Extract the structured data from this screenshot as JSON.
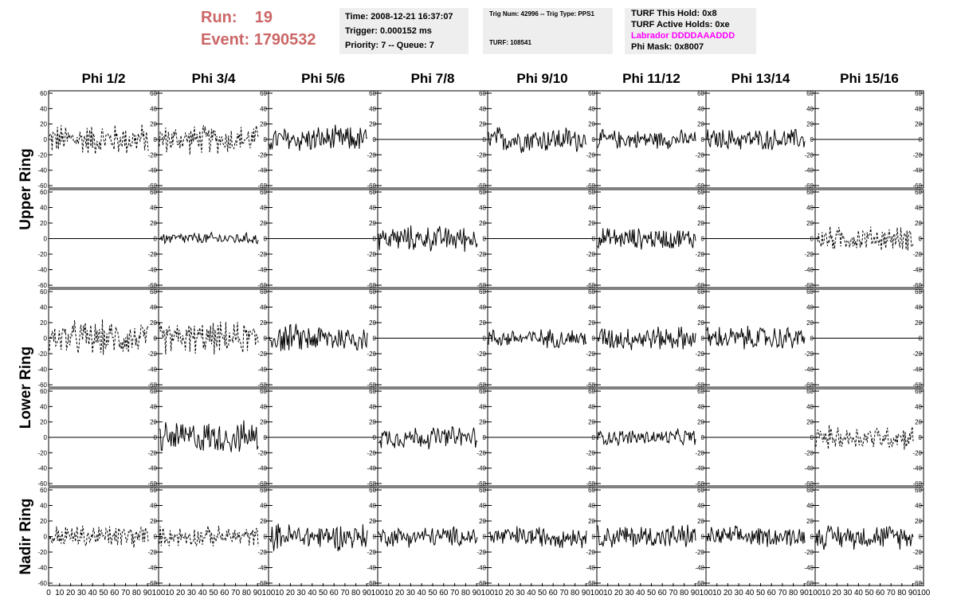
{
  "header": {
    "run_label": "Run:",
    "run_value": "19",
    "event_label": "Event:",
    "event_value": "1790532"
  },
  "info_box_1": {
    "time": "Time: 2008-12-21 16:37:07",
    "trigger": "Trigger: 0.000152 ms",
    "priority": "Priority: 7 -- Queue: 7"
  },
  "info_box_2": {
    "trig": "Trig Num: 42996 -- Trig Type: PPS1",
    "turf": "TURF: 108541"
  },
  "info_box_3": {
    "hold": "TURF This Hold: 0x8",
    "active": "TURF Active Holds: 0xe",
    "labrador": "Labrador DDDDAAADDD",
    "phimask": "Phi Mask: 0x8007",
    "labrador_color": "#ff00ff"
  },
  "chart_data": {
    "type": "line",
    "columns": [
      "Phi 1/2",
      "Phi 3/4",
      "Phi 5/6",
      "Phi 7/8",
      "Phi 9/10",
      "Phi 11/12",
      "Phi 13/14",
      "Phi 15/16"
    ],
    "ring_labels": [
      {
        "name": "Upper Ring",
        "rows": [
          0,
          1
        ]
      },
      {
        "name": "Lower Ring",
        "rows": [
          2,
          3
        ]
      },
      {
        "name": "Nadir Ring",
        "rows": [
          4
        ]
      }
    ],
    "ylim": [
      -60,
      60
    ],
    "yticks": [
      -60,
      -40,
      -20,
      0,
      20,
      40,
      60
    ],
    "xlim": [
      0,
      100
    ],
    "xticks": [
      0,
      10,
      20,
      30,
      40,
      50,
      60,
      70,
      80,
      90,
      100
    ],
    "panels": [
      [
        {
          "style": "dashed",
          "amp": 24
        },
        {
          "style": "dashed",
          "amp": 22
        },
        {
          "style": "solid",
          "amp": 20
        },
        {
          "style": "flat",
          "amp": 0
        },
        {
          "style": "solid",
          "amp": 20
        },
        {
          "style": "solid",
          "amp": 14
        },
        {
          "style": "solid",
          "amp": 16
        },
        {
          "style": "flat",
          "amp": 0
        }
      ],
      [
        {
          "style": "flat",
          "amp": 0
        },
        {
          "style": "solid",
          "amp": 9
        },
        {
          "style": "flat",
          "amp": 0
        },
        {
          "style": "solid",
          "amp": 19
        },
        {
          "style": "flat",
          "amp": 0
        },
        {
          "style": "solid",
          "amp": 16
        },
        {
          "style": "flat",
          "amp": 0
        },
        {
          "style": "dashed",
          "amp": 18
        }
      ],
      [
        {
          "style": "dashed",
          "amp": 26
        },
        {
          "style": "dashed",
          "amp": 24
        },
        {
          "style": "solid",
          "amp": 21
        },
        {
          "style": "flat",
          "amp": 0
        },
        {
          "style": "solid",
          "amp": 14
        },
        {
          "style": "solid",
          "amp": 18
        },
        {
          "style": "solid",
          "amp": 18
        },
        {
          "style": "flat",
          "amp": 0
        }
      ],
      [
        {
          "style": "flat",
          "amp": 0
        },
        {
          "style": "solid",
          "amp": 24
        },
        {
          "style": "flat",
          "amp": 0
        },
        {
          "style": "solid",
          "amp": 17
        },
        {
          "style": "flat",
          "amp": 0
        },
        {
          "style": "solid",
          "amp": 12
        },
        {
          "style": "flat",
          "amp": 0
        },
        {
          "style": "dashed",
          "amp": 18
        }
      ],
      [
        {
          "style": "dashed",
          "amp": 18
        },
        {
          "style": "dashed",
          "amp": 15
        },
        {
          "style": "solid",
          "amp": 20
        },
        {
          "style": "solid",
          "amp": 15
        },
        {
          "style": "solid",
          "amp": 16
        },
        {
          "style": "solid",
          "amp": 18
        },
        {
          "style": "solid",
          "amp": 15
        },
        {
          "style": "solid",
          "amp": 18
        }
      ]
    ]
  }
}
